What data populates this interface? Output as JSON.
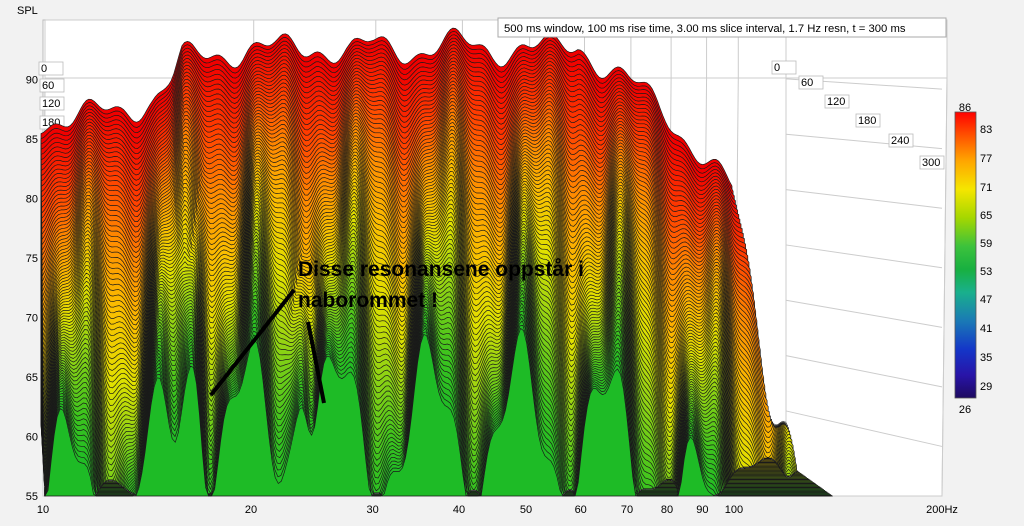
{
  "chart_data": {
    "type": "area",
    "subtype": "waterfall",
    "ylabel": "SPL",
    "x_unit": "Hz",
    "info": "500 ms window, 100 ms rise time, 3.00 ms slice interval, 1.7 Hz resn, t = 300 ms",
    "x_scale": "log",
    "xlim": [
      10,
      200
    ],
    "ylim": [
      55,
      95
    ],
    "x_ticks": [
      "10",
      "20",
      "30",
      "40",
      "50",
      "60",
      "70",
      "80",
      "90",
      "100",
      "200Hz"
    ],
    "y_ticks": [
      "55",
      "60",
      "65",
      "70",
      "75",
      "80",
      "85",
      "90"
    ],
    "time_ticks": [
      "0",
      "60",
      "120",
      "180",
      "240",
      "300"
    ],
    "colorbar": {
      "min": 26,
      "max": 86,
      "ticks": [
        "86",
        "83",
        "77",
        "71",
        "65",
        "59",
        "53",
        "47",
        "41",
        "35",
        "29",
        "26"
      ]
    },
    "annotation": "Disse resonansene oppstår i naborommet !",
    "annotation_lines": [
      "Disse resonansene oppstår i",
      "naborommet !"
    ],
    "slices": {
      "count": 90,
      "front_ms": 300,
      "back_ms": 0,
      "back_profile": {
        "freq": [
          10,
          13,
          14.5,
          15.5,
          16,
          20,
          22,
          25,
          28,
          30,
          35,
          40,
          45,
          50,
          55,
          60,
          63,
          70,
          80,
          90,
          100
        ],
        "spl": [
          80.6,
          81.2,
          82.4,
          84,
          85.6,
          86.6,
          86.4,
          86.8,
          86.2,
          86.7,
          86.5,
          86.9,
          86.4,
          86.8,
          86.3,
          86.8,
          85.9,
          84,
          81.2,
          77.8,
          74.5
        ]
      },
      "front_peaks": [
        {
          "freq": 16.3,
          "spl": 66.0
        },
        {
          "freq": 23.5,
          "spl": 62.5
        },
        {
          "freq": 26.5,
          "spl": 61.0
        }
      ]
    },
    "colors": {
      "background": "#f2f2f2",
      "wall": "#ffffff",
      "grid": "#cccccc",
      "outline": "#1a1a1a",
      "annotation": "#000000"
    }
  }
}
